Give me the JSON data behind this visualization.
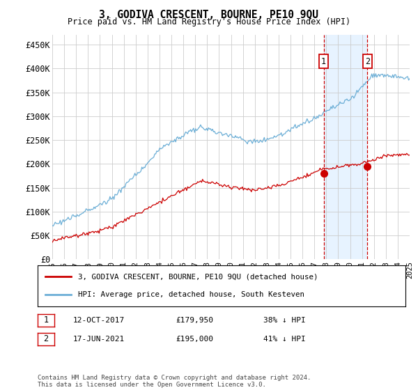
{
  "title": "3, GODIVA CRESCENT, BOURNE, PE10 9QU",
  "subtitle": "Price paid vs. HM Land Registry's House Price Index (HPI)",
  "hpi_color": "#6baed6",
  "price_color": "#cc0000",
  "dashed_line_color": "#cc0000",
  "shade_color": "#ddeeff",
  "background_color": "#ffffff",
  "grid_color": "#cccccc",
  "ylim": [
    0,
    470000
  ],
  "yticks": [
    0,
    50000,
    100000,
    150000,
    200000,
    250000,
    300000,
    350000,
    400000,
    450000
  ],
  "ytick_labels": [
    "£0",
    "£50K",
    "£100K",
    "£150K",
    "£200K",
    "£250K",
    "£300K",
    "£350K",
    "£400K",
    "£450K"
  ],
  "year_start": 1995,
  "year_end": 2025,
  "sale1_year": 2017.78,
  "sale1_price": 179950,
  "sale1_label": "1",
  "sale1_date": "12-OCT-2017",
  "sale1_price_str": "£179,950",
  "sale1_hpi_pct": "38% ↓ HPI",
  "sale2_year": 2021.46,
  "sale2_price": 195000,
  "sale2_label": "2",
  "sale2_date": "17-JUN-2021",
  "sale2_price_str": "£195,000",
  "sale2_hpi_pct": "41% ↓ HPI",
  "legend_entry1": "3, GODIVA CRESCENT, BOURNE, PE10 9QU (detached house)",
  "legend_entry2": "HPI: Average price, detached house, South Kesteven",
  "footer": "Contains HM Land Registry data © Crown copyright and database right 2024.\nThis data is licensed under the Open Government Licence v3.0."
}
